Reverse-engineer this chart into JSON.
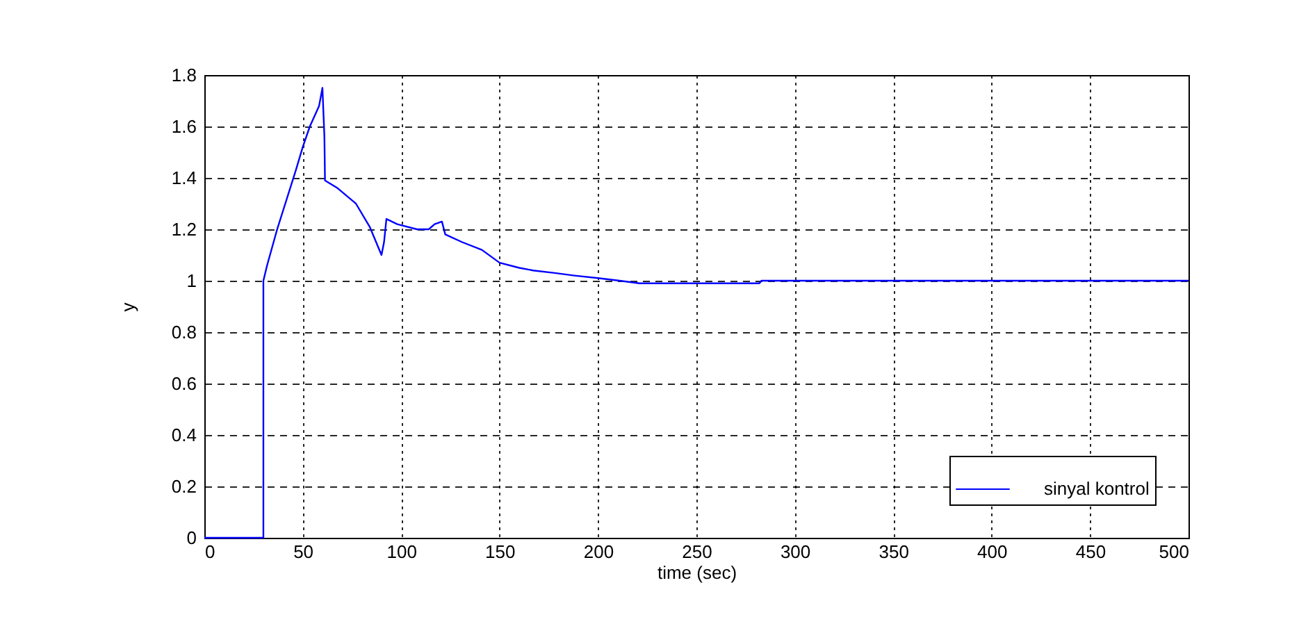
{
  "chart_data": {
    "type": "line",
    "xlabel": "time (sec)",
    "ylabel": "y",
    "x": [
      0,
      30,
      30,
      31.9,
      37,
      46.5,
      50,
      53.6,
      58.3,
      60,
      61,
      61.3,
      67.7,
      77,
      84,
      90,
      91.3,
      92.5,
      98,
      108,
      114,
      117,
      120.7,
      122.4,
      131,
      141,
      150,
      160,
      167,
      178,
      188,
      200,
      211,
      221,
      282,
      283,
      390,
      500
    ],
    "series": [
      {
        "name": "sinyal kontrol",
        "color": "#0000ff",
        "values": [
          0,
          0,
          1.0,
          1.06,
          1.2,
          1.43,
          1.52,
          1.6,
          1.68,
          1.75,
          1.56,
          1.39,
          1.36,
          1.3,
          1.21,
          1.1,
          1.15,
          1.24,
          1.22,
          1.2,
          1.2,
          1.22,
          1.23,
          1.18,
          1.15,
          1.12,
          1.07,
          1.05,
          1.04,
          1.03,
          1.02,
          1.01,
          1.0,
          0.99,
          0.99,
          1.0,
          1.0,
          1.0
        ]
      }
    ],
    "xlim": [
      0,
      500
    ],
    "xticks": [
      0,
      50,
      100,
      150,
      200,
      250,
      300,
      350,
      400,
      450,
      500
    ],
    "ylim": [
      0,
      1.8
    ],
    "yticks": [
      0,
      0.2,
      0.4,
      0.6,
      0.8,
      1,
      1.2,
      1.4,
      1.6,
      1.8
    ],
    "grid": true,
    "legend": "bottom right",
    "line_style": "solid"
  }
}
